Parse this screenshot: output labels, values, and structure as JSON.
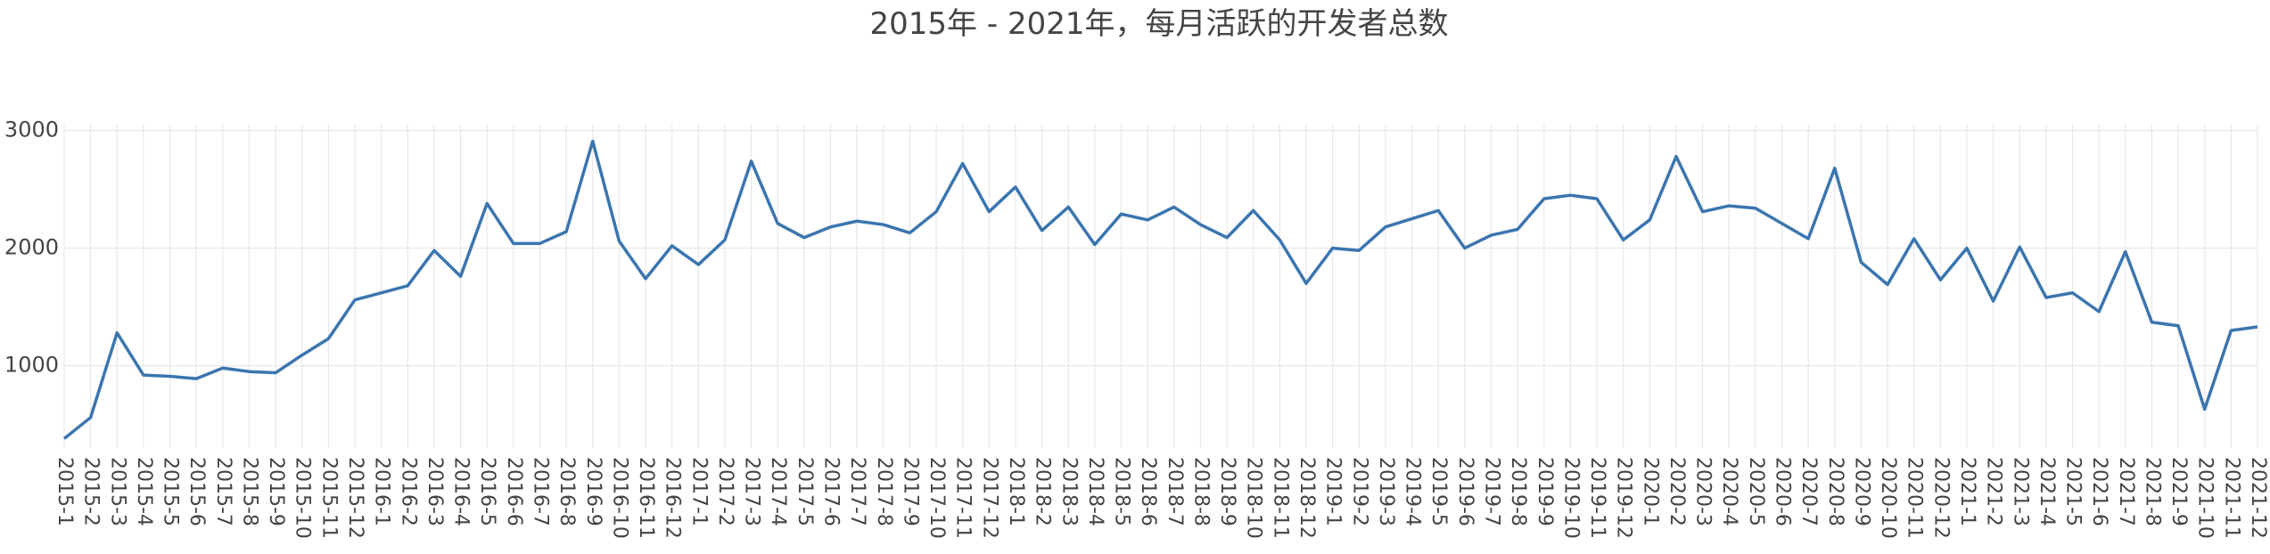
{
  "chart_data": {
    "type": "line",
    "title": "2015年 - 2021年，每月活跃的开发者总数",
    "xlabel": "",
    "ylabel": "",
    "ylim": [
      300,
      3050
    ],
    "yticks": [
      1000,
      2000,
      3000
    ],
    "grid": true,
    "legend": "none",
    "series_color": "#3b75af",
    "x": [
      "2015-1",
      "2015-2",
      "2015-3",
      "2015-4",
      "2015-5",
      "2015-6",
      "2015-7",
      "2015-8",
      "2015-9",
      "2015-10",
      "2015-11",
      "2015-12",
      "2016-1",
      "2016-2",
      "2016-3",
      "2016-4",
      "2016-5",
      "2016-6",
      "2016-7",
      "2016-8",
      "2016-9",
      "2016-10",
      "2016-11",
      "2016-12",
      "2017-1",
      "2017-2",
      "2017-3",
      "2017-4",
      "2017-5",
      "2017-6",
      "2017-7",
      "2017-8",
      "2017-9",
      "2017-10",
      "2017-11",
      "2017-12",
      "2018-1",
      "2018-2",
      "2018-3",
      "2018-4",
      "2018-5",
      "2018-6",
      "2018-7",
      "2018-8",
      "2018-9",
      "2018-10",
      "2018-11",
      "2018-12",
      "2019-1",
      "2019-2",
      "2019-3",
      "2019-4",
      "2019-5",
      "2019-6",
      "2019-7",
      "2019-8",
      "2019-9",
      "2019-10",
      "2019-11",
      "2019-12",
      "2020-1",
      "2020-2",
      "2020-3",
      "2020-4",
      "2020-5",
      "2020-6",
      "2020-7",
      "2020-8",
      "2020-9",
      "2020-10",
      "2020-11",
      "2020-12",
      "2021-1",
      "2021-2",
      "2021-3",
      "2021-4",
      "2021-5",
      "2021-6",
      "2021-7",
      "2021-8",
      "2021-9",
      "2021-10",
      "2021-11",
      "2021-12"
    ],
    "values": [
      380,
      560,
      1280,
      920,
      910,
      890,
      980,
      950,
      940,
      1090,
      1230,
      1560,
      1620,
      1680,
      1980,
      1760,
      2380,
      2040,
      2040,
      2140,
      2910,
      2060,
      1740,
      2020,
      1860,
      2070,
      2740,
      2210,
      2090,
      2180,
      2230,
      2200,
      2130,
      2310,
      2720,
      2310,
      2520,
      2150,
      2350,
      2030,
      2290,
      2240,
      2350,
      2200,
      2090,
      2320,
      2070,
      1700,
      2000,
      1980,
      2180,
      2250,
      2320,
      2000,
      2110,
      2160,
      2420,
      2450,
      2420,
      2070,
      2240,
      2780,
      2310,
      2360,
      2340,
      2210,
      2080,
      2680,
      1880,
      1690,
      2080,
      1730,
      2000,
      1550,
      2010,
      1580,
      1620,
      1460,
      1970,
      1370,
      1340,
      630,
      1300,
      1330
    ]
  }
}
